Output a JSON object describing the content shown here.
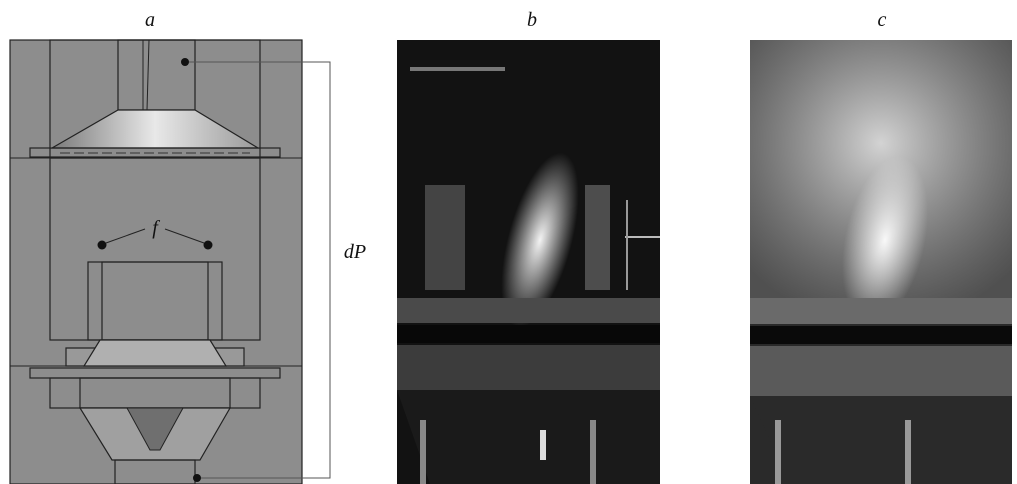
{
  "panels": [
    {
      "label": "a"
    },
    {
      "label": "b"
    },
    {
      "label": "c"
    }
  ],
  "annotations": {
    "sensors": "f",
    "pressure_drop": "dP"
  }
}
